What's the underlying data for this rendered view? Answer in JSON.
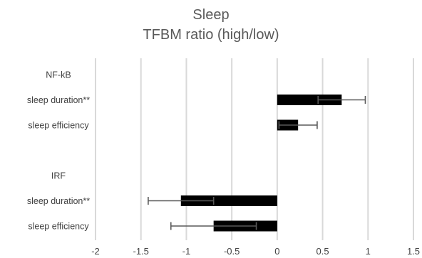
{
  "chart_data": {
    "type": "bar",
    "orientation": "horizontal",
    "title": "Sleep",
    "subtitle": "TFBM ratio (high/low)",
    "xlabel": "",
    "ylabel": "",
    "xlim": [
      -2,
      1.5
    ],
    "x_ticks": [
      "-2",
      "-1.5",
      "-1",
      "-0.5",
      "0",
      "0.5",
      "1",
      "1.5"
    ],
    "grid": "vertical",
    "legend": "none",
    "bar_color": "#000000",
    "error_bar_color": "#595959",
    "grid_color": "#d9d9d9",
    "categories": [
      "NF-kB",
      "sleep duration**",
      "sleep efficiency",
      "",
      "IRF",
      "sleep duration**",
      "sleep efficiency"
    ],
    "values": [
      null,
      0.71,
      0.23,
      null,
      null,
      -1.06,
      -0.7
    ],
    "errors": [
      null,
      0.26,
      0.21,
      null,
      null,
      0.36,
      0.47
    ]
  }
}
